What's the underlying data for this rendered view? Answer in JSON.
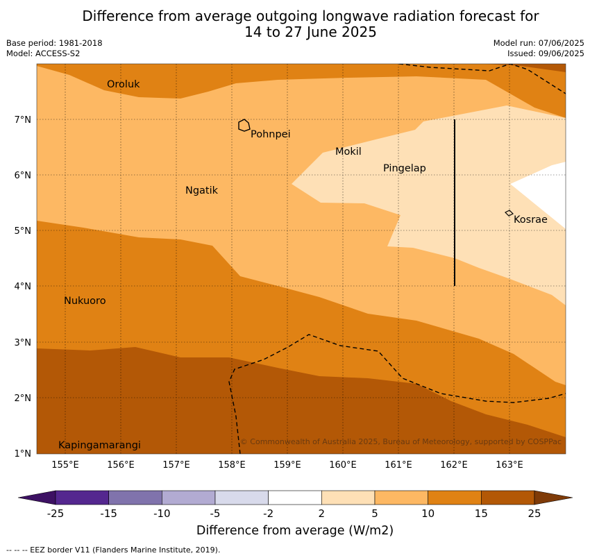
{
  "title_line1": "Difference from average outgoing longwave radiation forecast for",
  "title_line2": "14 to 27 June 2025",
  "base_period": "Base period: 1981-2018",
  "model": "Model: ACCESS-S2",
  "model_run": "Model run: 07/06/2025",
  "issued": "Issued: 09/06/2025",
  "copyright": "© Commonwealth of Australia 2025, Bureau of Meteorology, supported by COSPPac",
  "footnote": "--  --  -- EEZ border V11 (Flanders Marine Institute, 2019).",
  "lon_labels": [
    "155°E",
    "156°E",
    "157°E",
    "158°E",
    "159°E",
    "160°E",
    "161°E",
    "162°E",
    "163°E"
  ],
  "lat_labels": [
    "7°N",
    "6°N",
    "5°N",
    "4°N",
    "3°N",
    "2°N",
    "1°N"
  ],
  "places": {
    "oroluk": "Oroluk",
    "pohnpei": "Pohnpei",
    "mokil": "Mokil",
    "pingelap": "Pingelap",
    "ngatik": "Ngatik",
    "kosrae": "Kosrae",
    "nukuoro": "Nukuoro",
    "kapingamarangi": "Kapingamarangi"
  },
  "colorbar": {
    "title": "Difference from average (W/m2)",
    "ticks": [
      "-25",
      "-15",
      "-10",
      "-5",
      "-2",
      "2",
      "5",
      "10",
      "15",
      "25"
    ],
    "colors": [
      "#3d1163",
      "#54278f",
      "#8073ac",
      "#b2abd2",
      "#d8daeb",
      "#ffffff",
      "#fee0b6",
      "#fdb863",
      "#e08214",
      "#b35806",
      "#7f3b08"
    ]
  }
}
